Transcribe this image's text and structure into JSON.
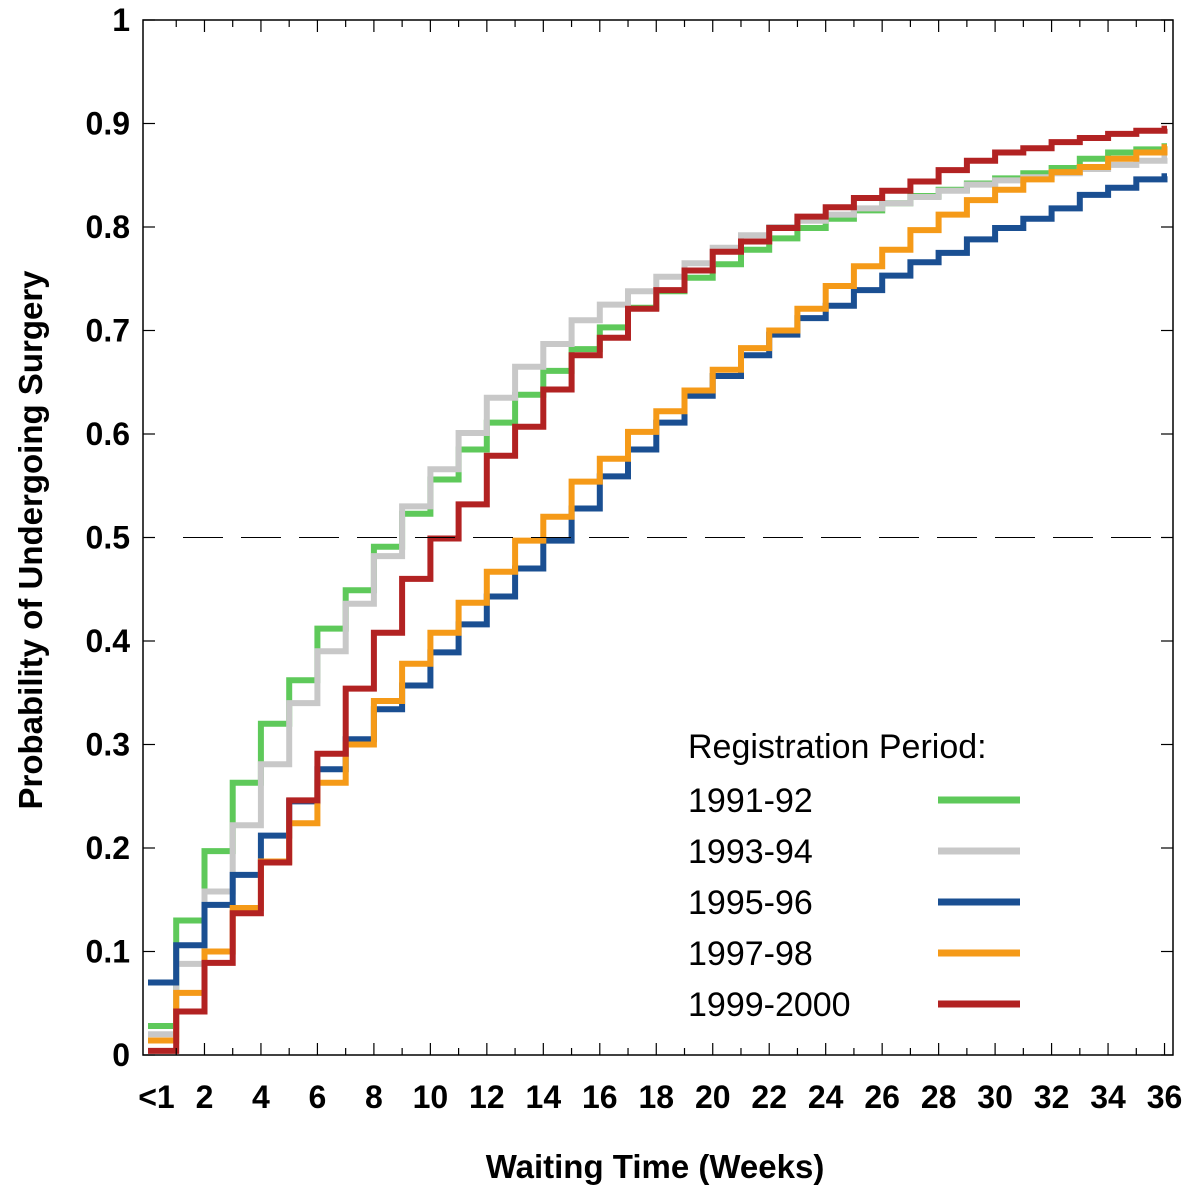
{
  "chart_data": {
    "type": "line",
    "title": "",
    "xlabel": "Waiting  Time  (Weeks)",
    "ylabel": "Probability  of  Undergoing  Surgery",
    "x_tick_labels": [
      "<1",
      "2",
      "4",
      "6",
      "8",
      "10",
      "12",
      "14",
      "16",
      "18",
      "20",
      "22",
      "24",
      "26",
      "28",
      "30",
      "32",
      "34",
      "36"
    ],
    "y_tick_labels": [
      "0",
      "0.1",
      "0.2",
      "0.3",
      "0.4",
      "0.5",
      "0.6",
      "0.7",
      "0.8",
      "0.9",
      "1"
    ],
    "xlim": [
      0,
      36.3
    ],
    "ylim": [
      0,
      1
    ],
    "reference_line": {
      "y": 0.5,
      "style": "dashed"
    },
    "step": true,
    "legend": {
      "title": "Registration Period:",
      "position": "bottom-right"
    },
    "x": [
      0,
      1,
      2,
      3,
      4,
      5,
      6,
      7,
      8,
      9,
      10,
      11,
      12,
      13,
      14,
      15,
      16,
      17,
      18,
      19,
      20,
      21,
      22,
      23,
      24,
      25,
      26,
      27,
      28,
      29,
      30,
      31,
      32,
      33,
      34,
      35,
      36
    ],
    "series": [
      {
        "name": "1991-92",
        "color": "#5ec95a",
        "values": [
          0.028,
          0.13,
          0.197,
          0.263,
          0.32,
          0.362,
          0.412,
          0.449,
          0.491,
          0.523,
          0.556,
          0.585,
          0.611,
          0.638,
          0.661,
          0.682,
          0.703,
          0.722,
          0.738,
          0.751,
          0.764,
          0.778,
          0.789,
          0.799,
          0.808,
          0.816,
          0.823,
          0.83,
          0.836,
          0.842,
          0.847,
          0.852,
          0.857,
          0.866,
          0.872,
          0.875,
          0.878
        ]
      },
      {
        "name": "1993-94",
        "color": "#c8c8c8",
        "values": [
          0.02,
          0.088,
          0.158,
          0.222,
          0.281,
          0.34,
          0.39,
          0.436,
          0.482,
          0.53,
          0.566,
          0.601,
          0.635,
          0.665,
          0.687,
          0.71,
          0.725,
          0.738,
          0.752,
          0.765,
          0.78,
          0.792,
          0.8,
          0.806,
          0.812,
          0.818,
          0.823,
          0.829,
          0.835,
          0.841,
          0.845,
          0.848,
          0.852,
          0.856,
          0.86,
          0.864,
          0.867
        ]
      },
      {
        "name": "1995-96",
        "color": "#1a4f92",
        "values": [
          0.07,
          0.106,
          0.145,
          0.174,
          0.212,
          0.245,
          0.276,
          0.305,
          0.334,
          0.357,
          0.389,
          0.416,
          0.443,
          0.47,
          0.497,
          0.528,
          0.559,
          0.585,
          0.611,
          0.637,
          0.656,
          0.676,
          0.696,
          0.712,
          0.724,
          0.739,
          0.753,
          0.766,
          0.775,
          0.788,
          0.799,
          0.808,
          0.818,
          0.831,
          0.838,
          0.846,
          0.849
        ]
      },
      {
        "name": "1997-98",
        "color": "#f59a18",
        "values": [
          0.014,
          0.06,
          0.1,
          0.142,
          0.187,
          0.224,
          0.263,
          0.3,
          0.342,
          0.378,
          0.408,
          0.437,
          0.467,
          0.497,
          0.52,
          0.554,
          0.576,
          0.602,
          0.622,
          0.642,
          0.662,
          0.683,
          0.7,
          0.721,
          0.743,
          0.762,
          0.778,
          0.797,
          0.812,
          0.826,
          0.836,
          0.846,
          0.853,
          0.858,
          0.866,
          0.872,
          0.877
        ]
      },
      {
        "name": "1999-2000",
        "color": "#b22222",
        "values": [
          0.004,
          0.042,
          0.089,
          0.137,
          0.186,
          0.246,
          0.291,
          0.354,
          0.408,
          0.46,
          0.499,
          0.532,
          0.579,
          0.607,
          0.643,
          0.676,
          0.693,
          0.721,
          0.739,
          0.758,
          0.776,
          0.786,
          0.799,
          0.81,
          0.819,
          0.828,
          0.835,
          0.844,
          0.855,
          0.864,
          0.872,
          0.876,
          0.882,
          0.886,
          0.89,
          0.893,
          0.895
        ]
      }
    ]
  }
}
